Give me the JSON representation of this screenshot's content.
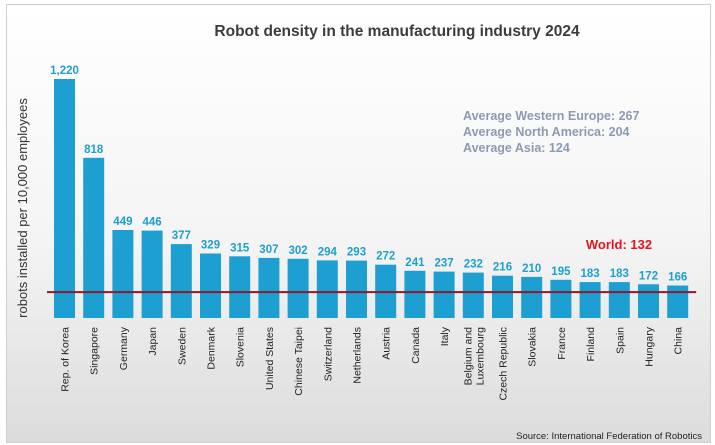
{
  "chart_data": {
    "type": "bar",
    "title": "Robot density in the manufacturing industry 2024",
    "ylabel": "robots installed per 10,000 employees",
    "categories": [
      "Rep. of Korea",
      "Singapore",
      "Germany",
      "Japan",
      "Sweden",
      "Denmark",
      "Slovenia",
      "United States",
      "Chinese Taipei",
      "Switzerland",
      "Netherlands",
      "Austria",
      "Canada",
      "Italy",
      "Belgium and Luxembourg",
      "Czech Republic",
      "Slovakia",
      "France",
      "Finland",
      "Spain",
      "Hungary",
      "China"
    ],
    "values": [
      1220,
      818,
      449,
      446,
      377,
      329,
      315,
      307,
      302,
      294,
      293,
      272,
      241,
      237,
      232,
      216,
      210,
      195,
      183,
      183,
      172,
      166
    ],
    "value_labels": [
      "1,220",
      "818",
      "449",
      "446",
      "377",
      "329",
      "315",
      "307",
      "302",
      "294",
      "293",
      "272",
      "241",
      "237",
      "232",
      "216",
      "210",
      "195",
      "183",
      "183",
      "172",
      "166"
    ],
    "reference_line": {
      "label": "World: 132",
      "value": 132
    },
    "annotations": [
      "Average Western Europe: 267",
      "Average North America: 204",
      "Average Asia: 124"
    ],
    "source": "Source: International Federation of Robotics",
    "colors": {
      "bar": "#1e9fd2",
      "value_label": "#1ea0cf",
      "world_line": "#8b1a2a",
      "world_label": "#e3141f",
      "annotation": "#8d9bb2"
    }
  }
}
